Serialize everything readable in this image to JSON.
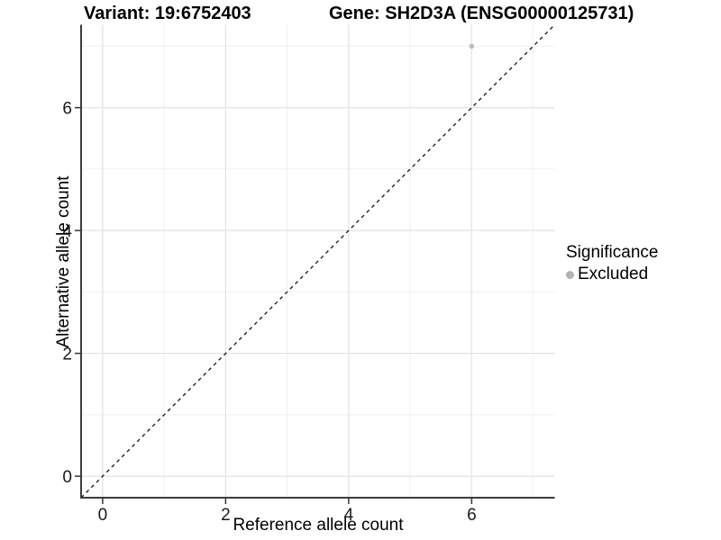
{
  "header": {
    "title_left": "Variant: 19:6752403",
    "title_right": "Gene: SH2D3A (ENSG00000125731)"
  },
  "chart_data": {
    "type": "scatter",
    "title_left": "Variant: 19:6752403",
    "title_right": "Gene: SH2D3A (ENSG00000125731)",
    "xlabel": "Reference allele count",
    "ylabel": "Alternative allele count",
    "xlim": [
      -0.35,
      7.35
    ],
    "ylim": [
      -0.35,
      7.35
    ],
    "x_ticks": [
      "0",
      "2",
      "4",
      "6"
    ],
    "x_tick_values": [
      0,
      2,
      4,
      6
    ],
    "y_ticks": [
      "0",
      "2",
      "4",
      "6"
    ],
    "y_tick_values": [
      0,
      2,
      4,
      6
    ],
    "grid": {
      "major": [
        0,
        2,
        4,
        6
      ],
      "minor": [
        1,
        3,
        5,
        7
      ],
      "visible": true
    },
    "points": [
      {
        "x": 6,
        "y": 7,
        "series": "Excluded"
      }
    ],
    "reference_line": {
      "style": "dashed",
      "slope": 1,
      "intercept": 0,
      "from": [
        -0.35,
        -0.35
      ],
      "to": [
        7.35,
        7.35
      ]
    },
    "legend": {
      "title": "Significance",
      "position": "right",
      "items": [
        {
          "label": "Excluded",
          "color": "#b3b3b3"
        }
      ]
    },
    "colors": {
      "background": "#ffffff",
      "point": "#bdbdbd",
      "legend_key": "#b3b3b3",
      "axis_line": "#3c3c3c",
      "tick_mark": "#333333",
      "tick_label": "#1a1a1a",
      "grid_major": "#e4e4e4",
      "grid_minor": "#f0f0f0",
      "reference_line": "#111111",
      "title_text": "#000000"
    }
  }
}
